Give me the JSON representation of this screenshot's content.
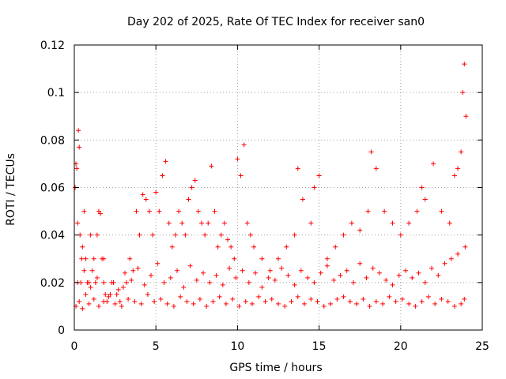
{
  "chart_data": {
    "type": "scatter",
    "title": "Day 202 of 2025, Rate Of TEC Index for receiver san0",
    "xlabel": "GPS time / hours",
    "ylabel": "ROTI / TECUs",
    "xlim": [
      0,
      25
    ],
    "ylim": [
      0,
      0.12
    ],
    "x_ticks": [
      0,
      5,
      10,
      15,
      20,
      25
    ],
    "x_tick_labels": [
      "0",
      "5",
      "10",
      "15",
      "20",
      "25"
    ],
    "y_ticks": [
      0,
      0.02,
      0.04,
      0.06,
      0.08,
      0.1,
      0.12
    ],
    "y_tick_labels": [
      "0",
      "0.02",
      "0.04",
      "0.06",
      "0.08",
      "0.1",
      "0.12"
    ],
    "grid": true,
    "marker": "+",
    "color": "#ff0000",
    "series": [
      {
        "x": [
          0.05,
          0.1,
          0.15,
          0.2,
          0.25,
          0.3,
          0.35,
          0.4,
          0.45,
          0.5,
          0.6,
          0.7,
          0.8,
          0.9,
          1.0,
          1.1,
          1.2,
          1.3,
          1.4,
          1.5,
          1.6,
          1.7,
          1.8,
          1.9,
          2.0,
          2.2,
          2.4,
          2.6,
          2.8,
          3.0,
          3.2,
          3.4,
          3.6,
          3.8,
          4.0,
          4.2,
          4.4,
          4.6,
          4.8,
          5.0,
          5.2,
          5.4,
          5.6,
          5.8,
          6.0,
          6.2,
          6.4,
          6.6,
          6.8,
          7.0,
          7.2,
          7.4,
          7.6,
          7.8,
          8.0,
          8.2,
          8.4,
          8.6,
          8.8,
          9.0,
          9.2,
          9.4,
          9.6,
          9.8,
          10.0,
          10.2,
          10.4,
          10.6,
          10.8,
          11.0,
          11.5,
          12.0,
          12.5,
          13.0,
          13.5,
          13.7,
          14.0,
          14.5,
          14.7,
          15.0,
          15.5,
          16.0,
          16.5,
          17.0,
          17.5,
          18.0,
          18.2,
          18.5,
          19.0,
          19.5,
          20.0,
          20.5,
          21.0,
          21.3,
          21.5,
          22.0,
          22.5,
          23.0,
          23.3,
          23.5,
          23.7,
          23.8,
          23.9,
          24.0,
          0.1,
          0.3,
          0.5,
          0.7,
          0.9,
          1.2,
          1.5,
          1.8,
          2.1,
          2.5,
          2.9,
          3.3,
          3.7,
          4.1,
          4.5,
          4.9,
          5.3,
          5.7,
          6.1,
          6.5,
          6.9,
          7.3,
          7.7,
          8.1,
          8.5,
          8.9,
          9.3,
          9.7,
          10.1,
          10.5,
          10.9,
          11.3,
          11.7,
          12.1,
          12.5,
          12.9,
          13.3,
          13.7,
          14.1,
          14.5,
          14.9,
          15.3,
          15.7,
          16.1,
          16.5,
          16.9,
          17.3,
          17.7,
          18.1,
          18.5,
          18.9,
          19.3,
          19.7,
          20.1,
          20.5,
          20.9,
          21.3,
          21.7,
          22.1,
          22.5,
          22.9,
          23.3,
          23.7,
          23.9,
          0.2,
          0.6,
          1.0,
          1.4,
          1.8,
          2.3,
          2.7,
          3.1,
          3.5,
          3.9,
          4.3,
          4.7,
          5.1,
          5.5,
          5.9,
          6.3,
          6.7,
          7.1,
          7.5,
          7.9,
          8.3,
          8.7,
          9.1,
          9.5,
          9.9,
          10.3,
          10.7,
          11.1,
          11.5,
          11.9,
          12.3,
          12.7,
          13.1,
          13.5,
          13.9,
          14.3,
          14.7,
          15.1,
          15.5,
          15.9,
          16.3,
          16.7,
          17.1,
          17.5,
          17.9,
          18.3,
          18.7,
          19.1,
          19.5,
          19.9,
          20.3,
          20.7,
          21.1,
          21.5,
          21.9,
          22.3,
          22.7,
          23.1,
          23.5,
          23.95
        ],
        "y": [
          0.06,
          0.07,
          0.068,
          0.045,
          0.084,
          0.077,
          0.04,
          0.02,
          0.03,
          0.035,
          0.05,
          0.03,
          0.02,
          0.02,
          0.04,
          0.025,
          0.03,
          0.02,
          0.04,
          0.05,
          0.049,
          0.03,
          0.02,
          0.015,
          0.012,
          0.015,
          0.02,
          0.015,
          0.012,
          0.018,
          0.02,
          0.03,
          0.025,
          0.05,
          0.04,
          0.057,
          0.055,
          0.05,
          0.04,
          0.058,
          0.05,
          0.065,
          0.071,
          0.045,
          0.035,
          0.04,
          0.05,
          0.045,
          0.04,
          0.055,
          0.06,
          0.063,
          0.05,
          0.045,
          0.04,
          0.045,
          0.069,
          0.05,
          0.035,
          0.04,
          0.045,
          0.038,
          0.035,
          0.03,
          0.072,
          0.065,
          0.078,
          0.045,
          0.04,
          0.035,
          0.03,
          0.025,
          0.03,
          0.035,
          0.04,
          0.068,
          0.055,
          0.045,
          0.06,
          0.065,
          0.03,
          0.035,
          0.04,
          0.045,
          0.042,
          0.05,
          0.075,
          0.068,
          0.05,
          0.045,
          0.04,
          0.045,
          0.05,
          0.06,
          0.055,
          0.07,
          0.05,
          0.045,
          0.065,
          0.068,
          0.075,
          0.1,
          0.112,
          0.09,
          0.01,
          0.012,
          0.009,
          0.015,
          0.011,
          0.013,
          0.01,
          0.012,
          0.014,
          0.011,
          0.01,
          0.013,
          0.012,
          0.011,
          0.015,
          0.012,
          0.013,
          0.011,
          0.01,
          0.014,
          0.012,
          0.011,
          0.013,
          0.01,
          0.012,
          0.014,
          0.011,
          0.013,
          0.01,
          0.012,
          0.011,
          0.014,
          0.012,
          0.013,
          0.011,
          0.01,
          0.012,
          0.014,
          0.011,
          0.013,
          0.012,
          0.01,
          0.011,
          0.013,
          0.014,
          0.012,
          0.011,
          0.013,
          0.01,
          0.012,
          0.011,
          0.014,
          0.012,
          0.013,
          0.011,
          0.01,
          0.012,
          0.014,
          0.011,
          0.013,
          0.012,
          0.01,
          0.011,
          0.013,
          0.02,
          0.025,
          0.018,
          0.022,
          0.03,
          0.02,
          0.017,
          0.024,
          0.021,
          0.026,
          0.019,
          0.023,
          0.028,
          0.02,
          0.022,
          0.025,
          0.018,
          0.027,
          0.021,
          0.024,
          0.02,
          0.023,
          0.019,
          0.026,
          0.022,
          0.025,
          0.02,
          0.024,
          0.018,
          0.022,
          0.021,
          0.026,
          0.023,
          0.019,
          0.025,
          0.022,
          0.02,
          0.024,
          0.027,
          0.021,
          0.023,
          0.025,
          0.02,
          0.028,
          0.022,
          0.026,
          0.024,
          0.021,
          0.019,
          0.023,
          0.025,
          0.022,
          0.024,
          0.02,
          0.026,
          0.023,
          0.028,
          0.03,
          0.032,
          0.035
        ]
      }
    ]
  }
}
